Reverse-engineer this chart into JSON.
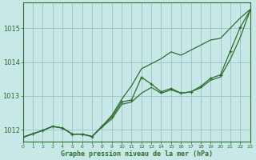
{
  "background_color": "#c8e8e8",
  "grid_color": "#a0c8c8",
  "line_color": "#2d6e2d",
  "xlabel": "Graphe pression niveau de la mer (hPa)",
  "xlim": [
    0,
    23
  ],
  "ylim": [
    1011.65,
    1015.75
  ],
  "yticks": [
    1012,
    1013,
    1014,
    1015
  ],
  "xticks": [
    0,
    1,
    2,
    3,
    4,
    5,
    6,
    7,
    8,
    9,
    10,
    11,
    12,
    13,
    14,
    15,
    16,
    17,
    18,
    19,
    20,
    21,
    22,
    23
  ],
  "y_smooth_upper": [
    1011.78,
    1011.88,
    1011.98,
    1012.1,
    1012.05,
    1011.87,
    1011.87,
    1011.8,
    1012.1,
    1012.42,
    1012.9,
    1013.3,
    1013.8,
    1013.95,
    1014.1,
    1014.3,
    1014.2,
    1014.35,
    1014.5,
    1014.65,
    1014.7,
    1015.0,
    1015.3,
    1015.55
  ],
  "y_marked": [
    1011.78,
    1011.88,
    1011.98,
    1012.1,
    1012.05,
    1011.87,
    1011.87,
    1011.8,
    1012.1,
    1012.38,
    1012.82,
    1012.88,
    1013.55,
    1013.35,
    1013.12,
    1013.22,
    1013.08,
    1013.12,
    1013.28,
    1013.52,
    1013.62,
    1014.32,
    1015.02,
    1015.52
  ],
  "y_smooth_lower": [
    1011.78,
    1011.88,
    1011.98,
    1012.1,
    1012.05,
    1011.87,
    1011.87,
    1011.8,
    1012.08,
    1012.32,
    1012.75,
    1012.82,
    1013.08,
    1013.25,
    1013.08,
    1013.18,
    1013.08,
    1013.12,
    1013.24,
    1013.46,
    1013.56,
    1014.08,
    1014.72,
    1015.52
  ]
}
